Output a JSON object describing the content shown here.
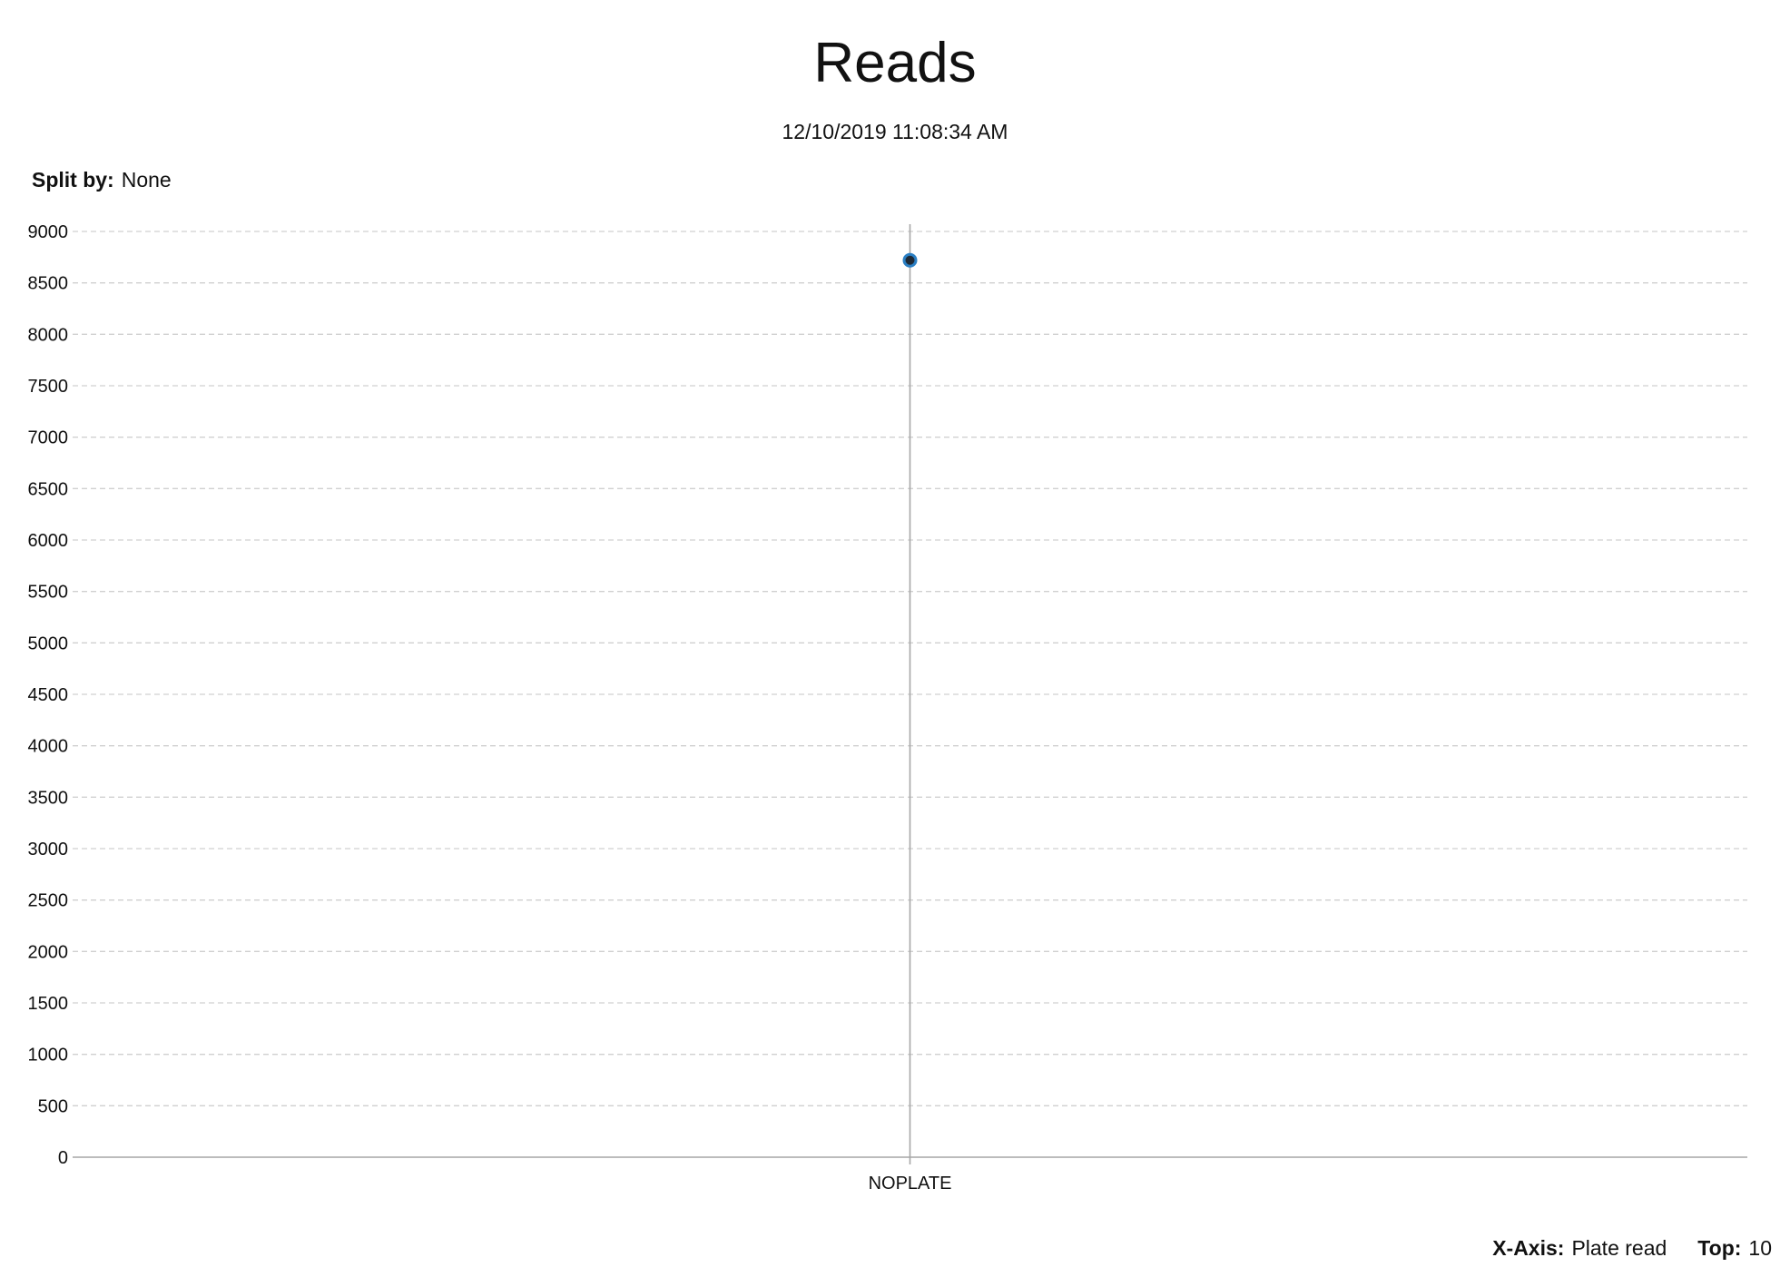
{
  "header": {
    "title": "Reads",
    "timestamp": "12/10/2019 11:08:34 AM"
  },
  "controls": {
    "split_by_label": "Split by:",
    "split_by_value": "None",
    "x_axis_label": "X-Axis:",
    "x_axis_value": "Plate read",
    "top_label": "Top:",
    "top_value": "10"
  },
  "colors": {
    "point_fill": "#1f2a36",
    "point_stroke": "#2b7fc3",
    "grid": "#d0d0d0",
    "axis": "#a6a6a6"
  },
  "chart_data": {
    "type": "scatter",
    "title": "Reads",
    "subtitle": "12/10/2019 11:08:34 AM",
    "xlabel": "",
    "ylabel": "",
    "categories": [
      "NOPLATE"
    ],
    "series": [
      {
        "values": [
          8720
        ]
      }
    ],
    "ylim": [
      0,
      9000
    ],
    "yticks": [
      0,
      500,
      1000,
      1500,
      2000,
      2500,
      3000,
      3500,
      4000,
      4500,
      5000,
      5500,
      6000,
      6500,
      7000,
      7500,
      8000,
      8500,
      9000
    ],
    "grid": true,
    "legend": "none"
  }
}
